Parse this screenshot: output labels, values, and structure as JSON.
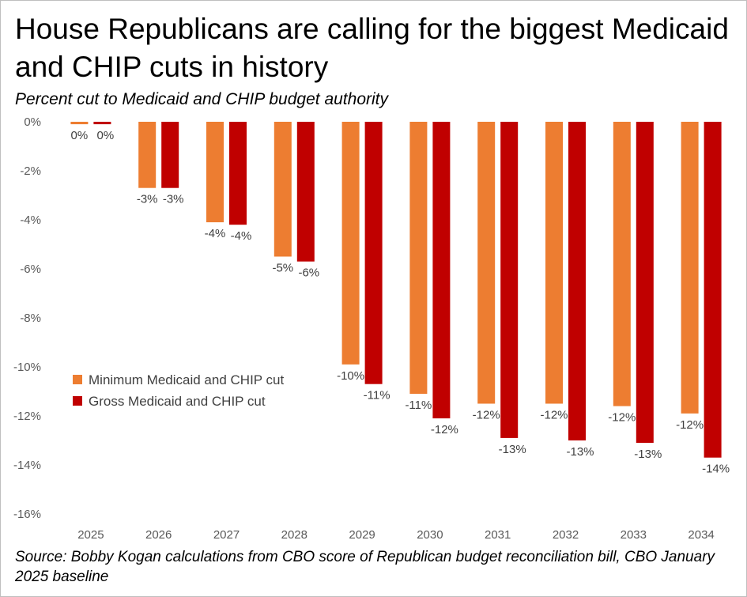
{
  "header": {
    "title": "House Republicans are calling for the biggest Medicaid and CHIP cuts in history",
    "subtitle": "Percent cut to Medicaid and CHIP budget authority"
  },
  "footer": {
    "source": "Source: Bobby Kogan calculations from CBO score of Republican budget reconciliation bill, CBO January 2025 baseline"
  },
  "chart_data": {
    "type": "bar",
    "title": "House Republicans are calling for the biggest Medicaid and CHIP cuts in history",
    "subtitle": "Percent cut to Medicaid and CHIP budget authority",
    "xlabel": "",
    "ylabel": "",
    "ylim": [
      -16,
      0
    ],
    "yticks": [
      0,
      -2,
      -4,
      -6,
      -8,
      -10,
      -12,
      -14,
      -16
    ],
    "ytick_labels": [
      "0%",
      "-2%",
      "-4%",
      "-6%",
      "-8%",
      "-10%",
      "-12%",
      "-14%",
      "-16%"
    ],
    "grid": false,
    "legend_position": "middle-left",
    "categories": [
      "2025",
      "2026",
      "2027",
      "2028",
      "2029",
      "2030",
      "2031",
      "2032",
      "2033",
      "2034"
    ],
    "series": [
      {
        "name": "Minimum Medicaid and CHIP cut",
        "color": "#ed7d31",
        "values": [
          -0.1,
          -2.7,
          -4.1,
          -5.5,
          -9.9,
          -11.1,
          -11.5,
          -11.5,
          -11.6,
          -11.9
        ],
        "labels": [
          "0%",
          "-3%",
          "-4%",
          "-5%",
          "-10%",
          "-11%",
          "-12%",
          "-12%",
          "-12%",
          "-12%"
        ]
      },
      {
        "name": "Gross Medicaid and CHIP cut",
        "color": "#c00000",
        "values": [
          -0.1,
          -2.7,
          -4.2,
          -5.7,
          -10.7,
          -12.1,
          -12.9,
          -13.0,
          -13.1,
          -13.7
        ],
        "labels": [
          "0%",
          "-3%",
          "-4%",
          "-6%",
          "-11%",
          "-12%",
          "-13%",
          "-13%",
          "-13%",
          "-14%"
        ]
      }
    ]
  }
}
